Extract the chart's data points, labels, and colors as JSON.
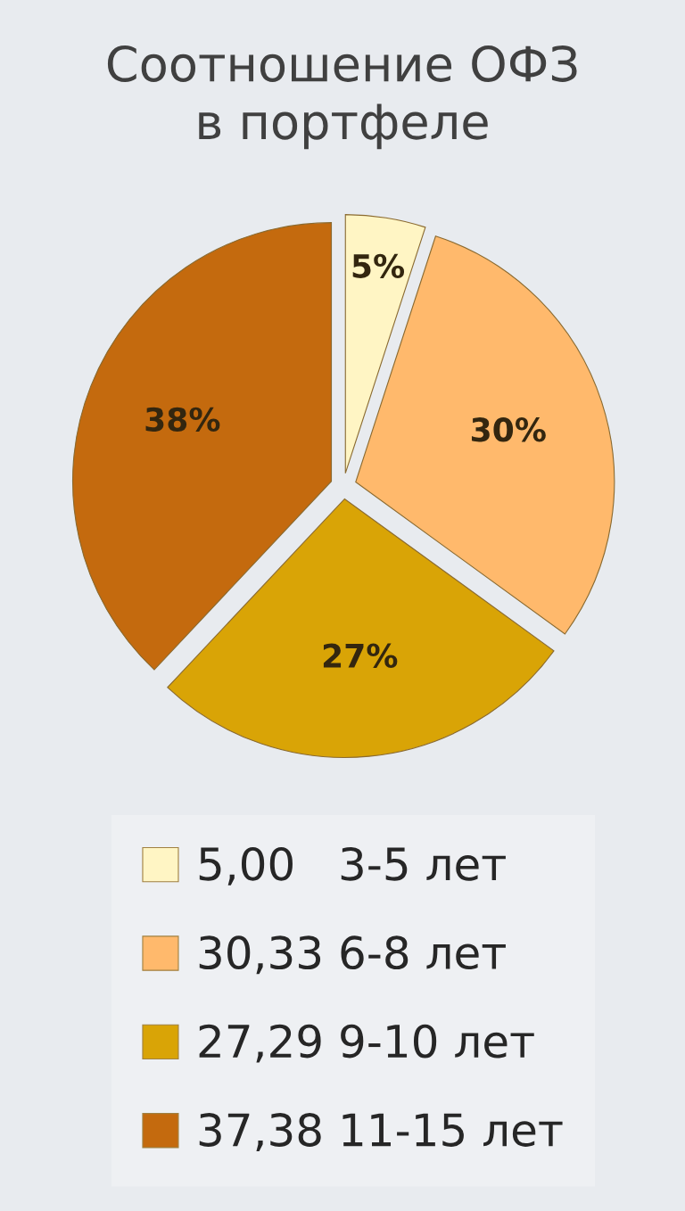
{
  "chart_data": {
    "type": "pie",
    "title": "Соотношение ОФЗ\nв портфеле",
    "categories": [
      "5,00   3-5 лет",
      "30,33 6-8 лет",
      "27,29 9-10 лет",
      "37,38 11-15 лет"
    ],
    "values": [
      5,
      30,
      27,
      38
    ],
    "colors": [
      "#fff5c4",
      "#ffb96c",
      "#d9a406",
      "#c46a0e"
    ],
    "value_labels": [
      "5%",
      "30%",
      "27%",
      "38%"
    ],
    "legend": "bottom"
  }
}
